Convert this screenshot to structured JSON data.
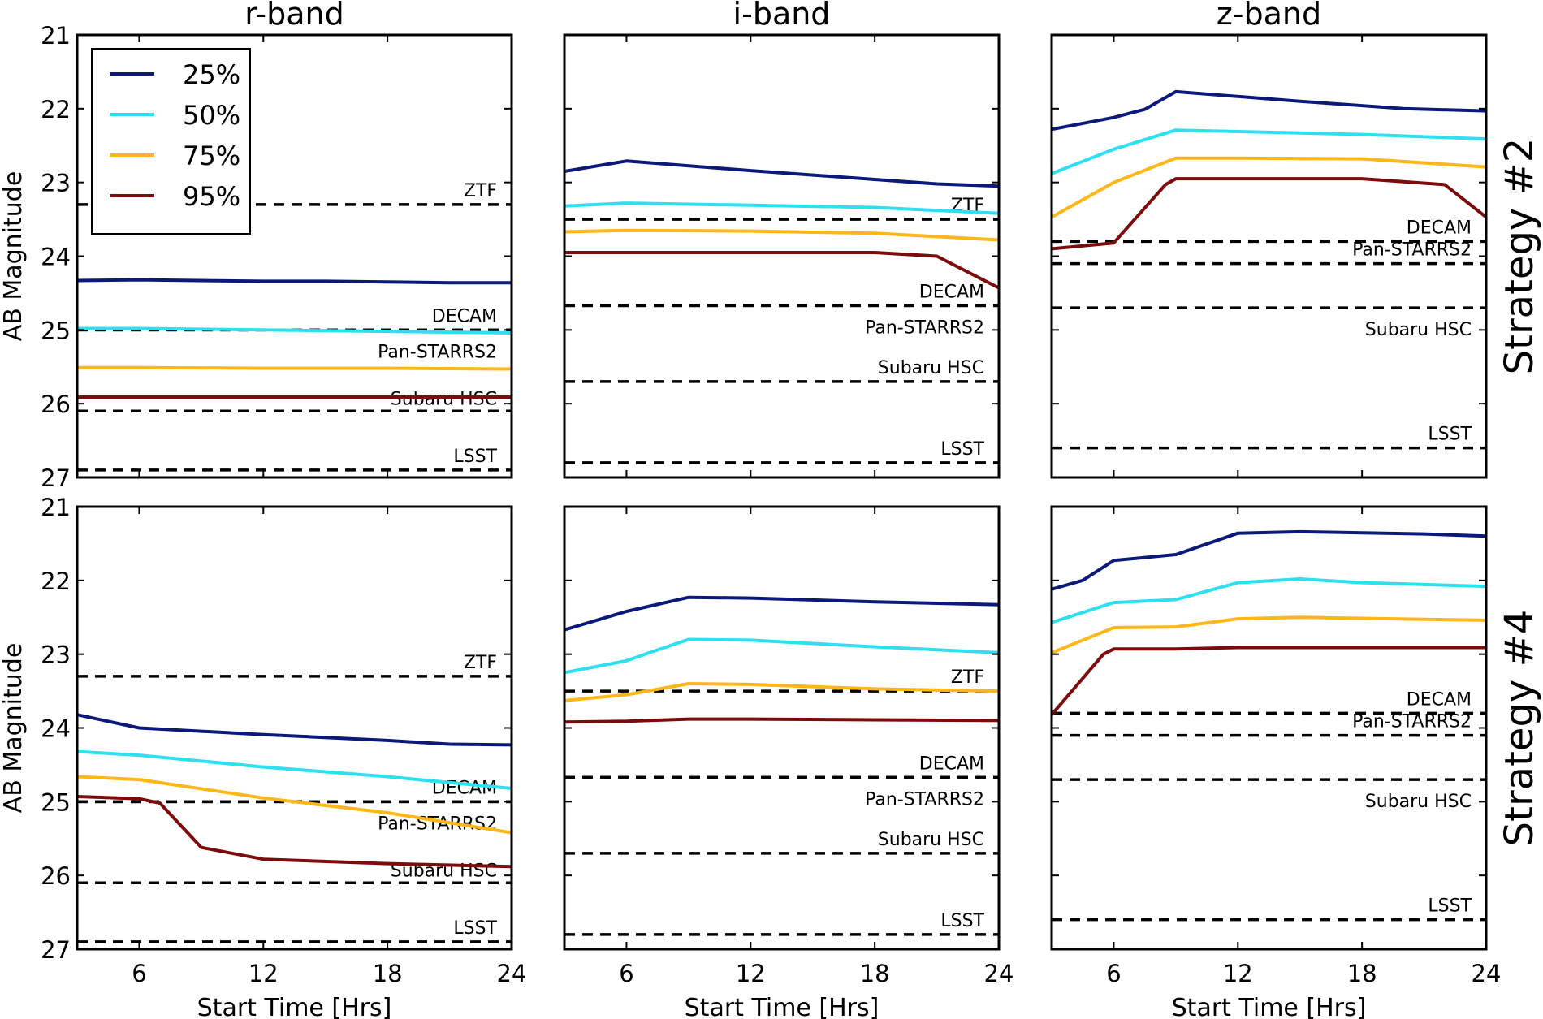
{
  "chart_data": {
    "type": "line",
    "layout": "2x3 grid",
    "columns": [
      "r-band",
      "i-band",
      "z-band"
    ],
    "rows": [
      "Strategy #2",
      "Strategy #4"
    ],
    "xlabel": "Start Time [Hrs]",
    "ylabel": "AB Magnitude",
    "xlim": [
      3,
      24
    ],
    "ylim": [
      21,
      27
    ],
    "y_inverted": true,
    "xticks": [
      "6",
      "12",
      "18",
      "24"
    ],
    "yticks": [
      "21",
      "22",
      "23",
      "24",
      "25",
      "26",
      "27"
    ],
    "legend": {
      "placement": "top-left",
      "entries": [
        {
          "label": "25%",
          "color": "#0b1a7a"
        },
        {
          "label": "50%",
          "color": "#2de0f0"
        },
        {
          "label": "75%",
          "color": "#ffb619"
        },
        {
          "label": "95%",
          "color": "#7c0c0c"
        }
      ]
    },
    "survey_limits": {
      "r-band": [
        {
          "name": "ZTF",
          "mag": 23.3
        },
        {
          "name": "DECAM",
          "mag": 25.0
        },
        {
          "name": "Pan-STARRS2",
          "mag": 25.0
        },
        {
          "name": "Subaru HSC",
          "mag": 26.1
        },
        {
          "name": "LSST",
          "mag": 26.9
        }
      ],
      "i-band": [
        {
          "name": "ZTF",
          "mag": 23.5
        },
        {
          "name": "DECAM",
          "mag": 24.67
        },
        {
          "name": "Pan-STARRS2",
          "mag": 24.67
        },
        {
          "name": "Subaru HSC",
          "mag": 25.7
        },
        {
          "name": "LSST",
          "mag": 26.8
        }
      ],
      "z-band": [
        {
          "name": "DECAM",
          "mag": 23.8
        },
        {
          "name": "Pan-STARRS2",
          "mag": 24.1
        },
        {
          "name": "Subaru HSC",
          "mag": 24.7
        },
        {
          "name": "LSST",
          "mag": 26.6
        }
      ]
    },
    "panels": [
      {
        "row": "Strategy #2",
        "band": "r-band",
        "series": [
          {
            "name": "25%",
            "x": [
              3,
              6,
              12,
              15,
              21,
              24
            ],
            "y": [
              24.33,
              24.32,
              24.34,
              24.34,
              24.36,
              24.36
            ]
          },
          {
            "name": "50%",
            "x": [
              3,
              6,
              12,
              18,
              24
            ],
            "y": [
              24.98,
              24.98,
              25.0,
              25.02,
              25.04
            ]
          },
          {
            "name": "75%",
            "x": [
              3,
              6,
              12,
              18,
              24
            ],
            "y": [
              25.51,
              25.51,
              25.52,
              25.52,
              25.53
            ]
          },
          {
            "name": "95%",
            "x": [
              3,
              6,
              12,
              18,
              24
            ],
            "y": [
              25.91,
              25.91,
              25.91,
              25.91,
              25.91
            ]
          }
        ]
      },
      {
        "row": "Strategy #2",
        "band": "i-band",
        "series": [
          {
            "name": "25%",
            "x": [
              3,
              6,
              12,
              18,
              21,
              24
            ],
            "y": [
              22.85,
              22.71,
              22.84,
              22.96,
              23.02,
              23.05
            ]
          },
          {
            "name": "50%",
            "x": [
              3,
              6,
              12,
              18,
              24
            ],
            "y": [
              23.32,
              23.28,
              23.31,
              23.34,
              23.42
            ]
          },
          {
            "name": "75%",
            "x": [
              3,
              6,
              12,
              18,
              24
            ],
            "y": [
              23.67,
              23.65,
              23.66,
              23.69,
              23.78
            ]
          },
          {
            "name": "95%",
            "x": [
              3,
              6,
              12,
              18,
              21,
              24
            ],
            "y": [
              23.95,
              23.95,
              23.95,
              23.95,
              24.0,
              24.43
            ]
          }
        ]
      },
      {
        "row": "Strategy #2",
        "band": "z-band",
        "series": [
          {
            "name": "25%",
            "x": [
              3,
              6,
              7.5,
              9,
              15,
              20,
              24
            ],
            "y": [
              22.28,
              22.12,
              22.01,
              21.77,
              21.9,
              22.0,
              22.03
            ]
          },
          {
            "name": "50%",
            "x": [
              3,
              6,
              9,
              15,
              18,
              24
            ],
            "y": [
              22.88,
              22.55,
              22.29,
              22.33,
              22.35,
              22.41
            ]
          },
          {
            "name": "75%",
            "x": [
              3,
              6,
              9,
              12,
              18,
              24
            ],
            "y": [
              23.47,
              23.0,
              22.67,
              22.67,
              22.68,
              22.79
            ]
          },
          {
            "name": "95%",
            "x": [
              3,
              6,
              8.5,
              9,
              15,
              18,
              22,
              24
            ],
            "y": [
              23.9,
              23.82,
              23.03,
              22.95,
              22.95,
              22.95,
              23.03,
              23.47
            ]
          }
        ]
      },
      {
        "row": "Strategy #4",
        "band": "r-band",
        "series": [
          {
            "name": "25%",
            "x": [
              3,
              6,
              12,
              18,
              21,
              24
            ],
            "y": [
              23.82,
              24.0,
              24.09,
              24.17,
              24.22,
              24.23
            ]
          },
          {
            "name": "50%",
            "x": [
              3,
              6,
              12,
              18,
              24
            ],
            "y": [
              24.32,
              24.37,
              24.53,
              24.66,
              24.82
            ]
          },
          {
            "name": "75%",
            "x": [
              3,
              6,
              12,
              18,
              24
            ],
            "y": [
              24.66,
              24.7,
              24.95,
              25.15,
              25.42
            ]
          },
          {
            "name": "95%",
            "x": [
              3,
              6,
              7,
              9,
              12,
              18,
              24
            ],
            "y": [
              24.93,
              24.96,
              25.02,
              25.62,
              25.78,
              25.84,
              25.88
            ]
          }
        ]
      },
      {
        "row": "Strategy #4",
        "band": "i-band",
        "series": [
          {
            "name": "25%",
            "x": [
              3,
              6,
              9,
              12,
              18,
              24
            ],
            "y": [
              22.67,
              22.42,
              22.23,
              22.24,
              22.29,
              22.33
            ]
          },
          {
            "name": "50%",
            "x": [
              3,
              6,
              7,
              9,
              12,
              18,
              24
            ],
            "y": [
              23.25,
              23.09,
              22.99,
              22.8,
              22.81,
              22.9,
              22.98
            ]
          },
          {
            "name": "75%",
            "x": [
              3,
              6,
              9,
              12,
              18,
              24
            ],
            "y": [
              23.63,
              23.55,
              23.4,
              23.41,
              23.47,
              23.5
            ]
          },
          {
            "name": "95%",
            "x": [
              3,
              6,
              9,
              12,
              18,
              24
            ],
            "y": [
              23.92,
              23.91,
              23.88,
              23.88,
              23.89,
              23.9
            ]
          }
        ]
      },
      {
        "row": "Strategy #4",
        "band": "z-band",
        "series": [
          {
            "name": "25%",
            "x": [
              3,
              4.5,
              6,
              9,
              12,
              15,
              21,
              24
            ],
            "y": [
              22.12,
              22.0,
              21.73,
              21.65,
              21.36,
              21.34,
              21.37,
              21.4
            ]
          },
          {
            "name": "50%",
            "x": [
              3,
              6,
              9,
              12,
              15,
              18,
              24
            ],
            "y": [
              22.57,
              22.3,
              22.26,
              22.03,
              21.98,
              22.03,
              22.08
            ]
          },
          {
            "name": "75%",
            "x": [
              3,
              6,
              9,
              12,
              15,
              24
            ],
            "y": [
              22.98,
              22.64,
              22.63,
              22.52,
              22.5,
              22.54
            ]
          },
          {
            "name": "95%",
            "x": [
              3,
              5.5,
              6,
              9,
              12,
              15,
              24
            ],
            "y": [
              23.82,
              23.0,
              22.93,
              22.93,
              22.91,
              22.91,
              22.91
            ]
          }
        ]
      }
    ]
  }
}
